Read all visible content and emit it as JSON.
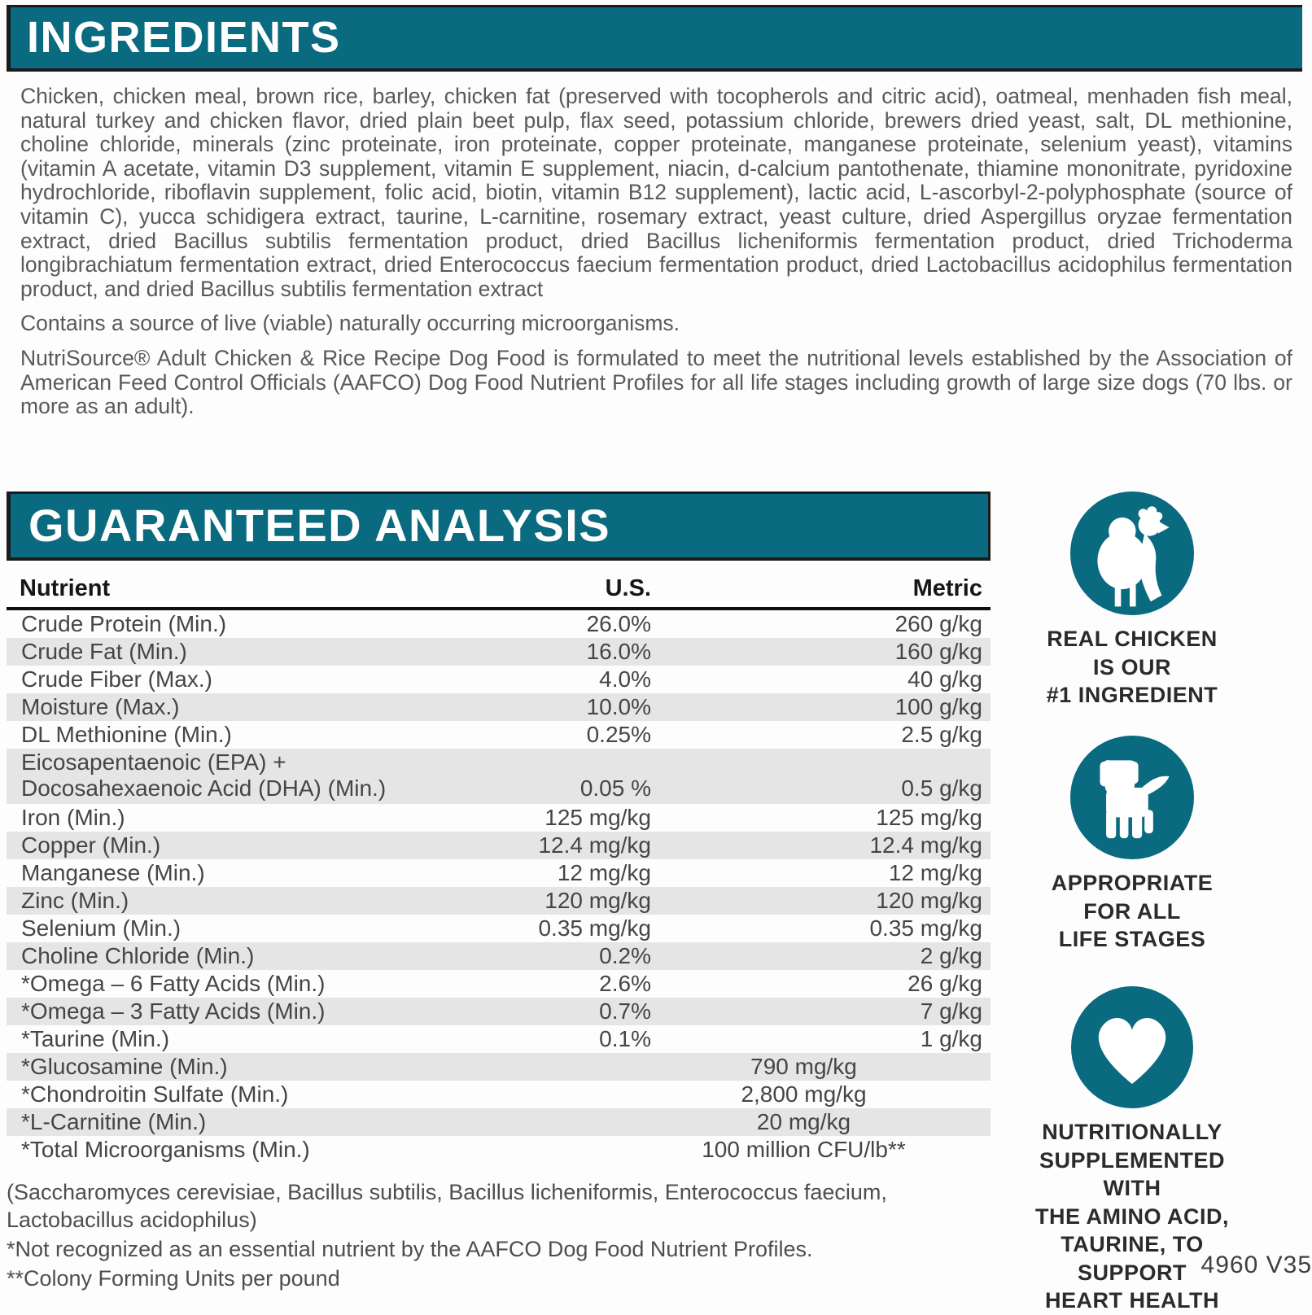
{
  "colors": {
    "teal": "#0a6a80",
    "stripe": "#e5e5e5",
    "bar_outline": "#1b1b1b",
    "body_text": "#595959",
    "table_text": "#454545"
  },
  "ingredients": {
    "title": "INGREDIENTS",
    "paragraphs": [
      "Chicken, chicken meal, brown rice, barley, chicken fat (preserved with tocopherols and citric acid), oatmeal, menhaden fish meal, natural turkey and chicken flavor, dried plain beet pulp, flax seed, potassium chloride, brewers dried yeast, salt, DL methionine, choline chloride, minerals (zinc proteinate, iron proteinate, copper proteinate, manganese proteinate, selenium yeast), vitamins (vitamin A acetate, vitamin D3 supplement, vitamin E supplement, niacin, d-calcium pantothenate, thiamine mononitrate, pyridoxine hydrochloride, riboflavin supplement, folic acid, biotin, vitamin B12 supplement), lactic acid, L-ascorbyl-2-polyphosphate (source of vitamin C), yucca schidigera extract, taurine, L-carnitine, rosemary extract, yeast culture, dried Aspergillus oryzae fermentation extract, dried Bacillus subtilis fermentation product, dried Bacillus licheniformis fermentation product, dried Trichoderma longibrachiatum fermentation extract, dried Enterococcus faecium fermentation product, dried Lactobacillus acidophilus fermentation product, and dried Bacillus subtilis fermentation extract",
      "Contains a source of live (viable) naturally occurring microorganisms.",
      "NutriSource® Adult Chicken & Rice Recipe Dog Food is formulated to meet the nutritional levels established by the Association of American Feed Control Officials (AAFCO) Dog Food Nutrient Profiles for all life stages including growth of large size dogs (70 lbs. or more as an adult)."
    ]
  },
  "analysis": {
    "title": "GUARANTEED ANALYSIS",
    "columns": [
      "Nutrient",
      "U.S.",
      "Metric"
    ],
    "rows": [
      {
        "nutrient": "Crude Protein (Min.)",
        "us": "26.0%",
        "metric": "260 g/kg"
      },
      {
        "nutrient": "Crude Fat (Min.)",
        "us": "16.0%",
        "metric": "160 g/kg"
      },
      {
        "nutrient": "Crude Fiber (Max.)",
        "us": "4.0%",
        "metric": "40 g/kg"
      },
      {
        "nutrient": "Moisture (Max.)",
        "us": "10.0%",
        "metric": "100 g/kg"
      },
      {
        "nutrient": "DL Methionine (Min.)",
        "us": "0.25%",
        "metric": "2.5 g/kg"
      },
      {
        "nutrient": "Eicosapentaenoic (EPA) +\nDocosahexaenoic Acid (DHA) (Min.)",
        "us": "0.05 %",
        "metric": "0.5 g/kg"
      },
      {
        "nutrient": "Iron (Min.)",
        "us": "125 mg/kg",
        "metric": "125 mg/kg"
      },
      {
        "nutrient": "Copper (Min.)",
        "us": "12.4 mg/kg",
        "metric": "12.4 mg/kg"
      },
      {
        "nutrient": "Manganese (Min.)",
        "us": "12 mg/kg",
        "metric": "12 mg/kg"
      },
      {
        "nutrient": "Zinc (Min.)",
        "us": "120 mg/kg",
        "metric": "120 mg/kg"
      },
      {
        "nutrient": "Selenium (Min.)",
        "us": "0.35 mg/kg",
        "metric": "0.35 mg/kg"
      },
      {
        "nutrient": "Choline Chloride (Min.)",
        "us": "0.2%",
        "metric": "2 g/kg"
      },
      {
        "nutrient": "*Omega – 6 Fatty Acids (Min.)",
        "us": "2.6%",
        "metric": "26 g/kg"
      },
      {
        "nutrient": "*Omega – 3 Fatty Acids (Min.)",
        "us": "0.7%",
        "metric": "7 g/kg"
      },
      {
        "nutrient": "*Taurine (Min.)",
        "us": "0.1%",
        "metric": "1 g/kg"
      },
      {
        "nutrient": "*Glucosamine (Min.)",
        "span": "790 mg/kg"
      },
      {
        "nutrient": "*Chondroitin Sulfate (Min.)",
        "span": "2,800 mg/kg"
      },
      {
        "nutrient": "*L-Carnitine (Min.)",
        "span": "20 mg/kg"
      },
      {
        "nutrient": "*Total Microorganisms (Min.)",
        "span": "100 million CFU/lb**"
      }
    ],
    "footnotes": [
      "(Saccharomyces cerevisiae, Bacillus subtilis, Bacillus licheniformis, Enterococcus faecium,\nLactobacillus acidophilus)",
      "*Not recognized as an essential nutrient by the AAFCO Dog Food Nutrient Profiles.",
      "**Colony Forming Units per pound"
    ]
  },
  "badges": [
    {
      "icon": "chicken-icon",
      "label": "REAL CHICKEN\nIS OUR\n#1 INGREDIENT"
    },
    {
      "icon": "puppy-icon",
      "label": "APPROPRIATE\nFOR ALL\nLIFE STAGES"
    },
    {
      "icon": "heart-icon",
      "label": "NUTRITIONALLY\nSUPPLEMENTED WITH\nTHE AMINO ACID,\nTAURINE, TO SUPPORT\nHEART HEALTH"
    }
  ],
  "footer_code": "4960 V35"
}
